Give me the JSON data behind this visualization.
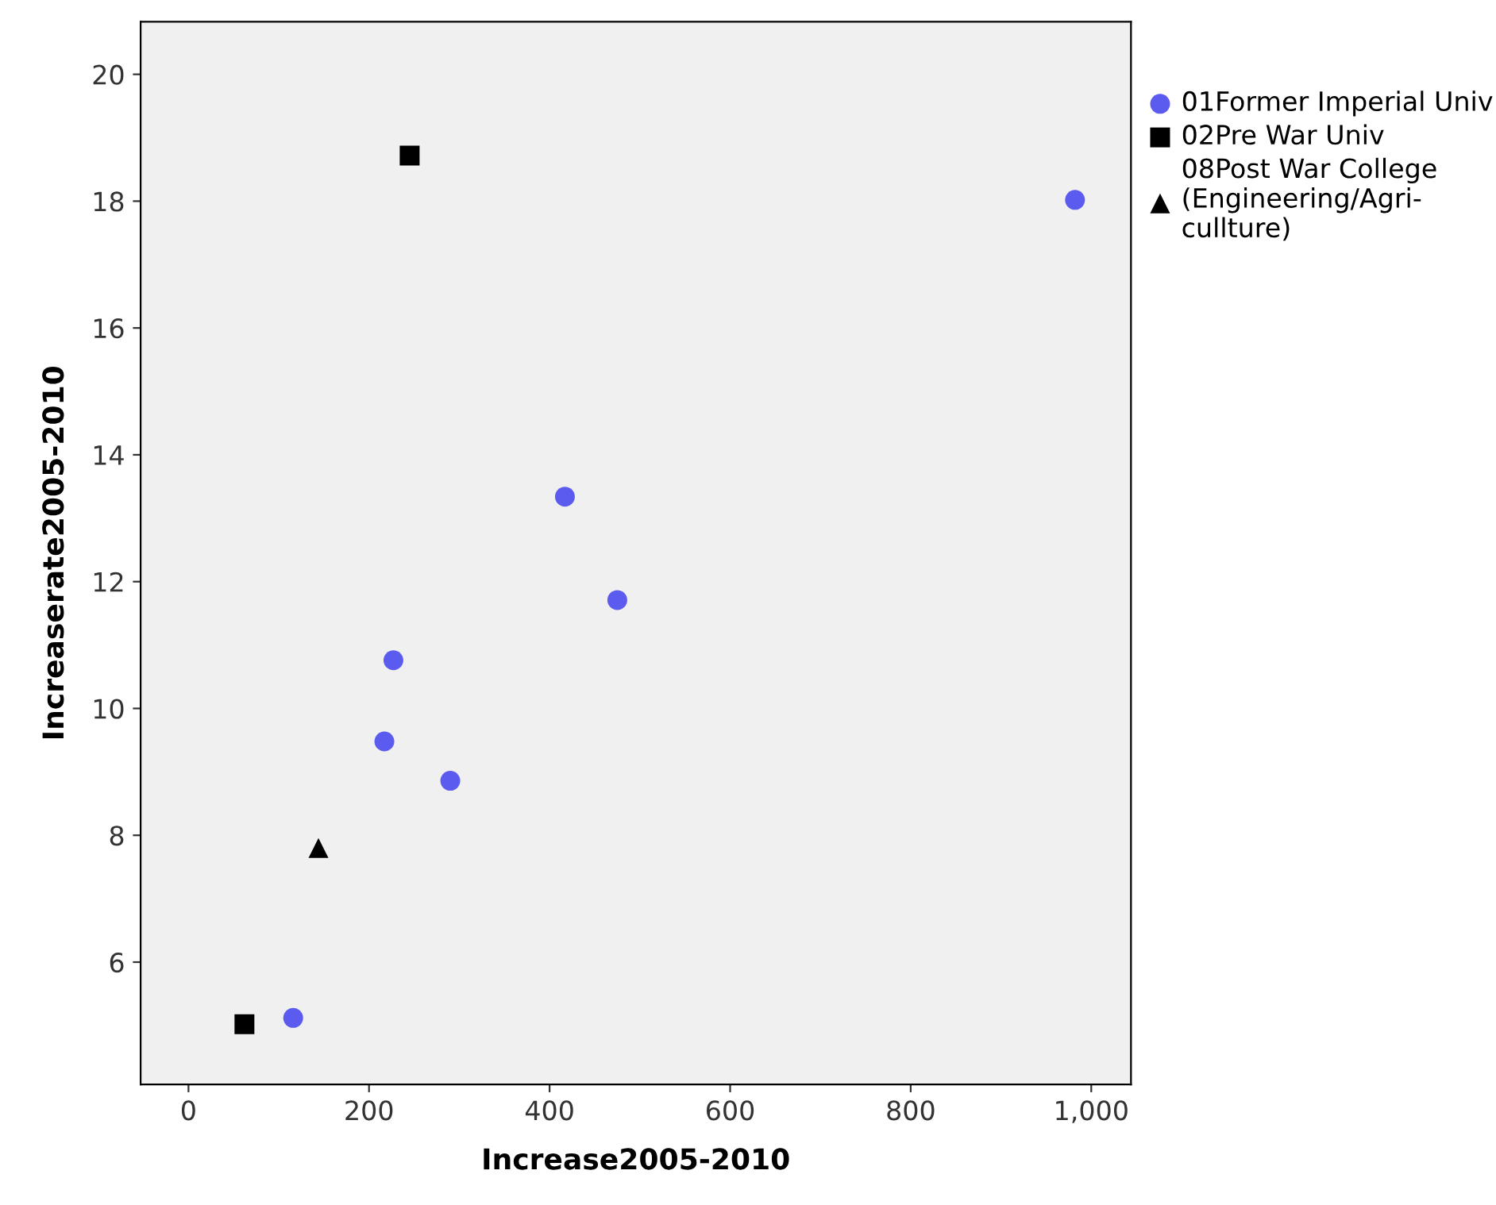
{
  "chart_data": {
    "type": "scatter",
    "xlabel": "Increase2005-2010",
    "ylabel": "Increaserate2005-2010",
    "xlim": [
      -53,
      1044
    ],
    "ylim": [
      4.07,
      20.83
    ],
    "xticks": [
      0,
      200,
      400,
      600,
      800,
      {
        "value": 1000,
        "label": "1,000"
      }
    ],
    "yticks": [
      6,
      8,
      10,
      12,
      14,
      16,
      18,
      20
    ],
    "grid": false,
    "legend": "right",
    "series": [
      {
        "name": "01Former Imperial Univ",
        "color": "#5b5bf0",
        "marker": "circle",
        "x": [
          982,
          417,
          475,
          227,
          217,
          290,
          116
        ],
        "values": [
          18.02,
          13.34,
          11.71,
          10.76,
          9.48,
          8.86,
          5.12
        ]
      },
      {
        "name": "02Pre War Univ",
        "color": "#000000",
        "marker": "square",
        "x": [
          245,
          62
        ],
        "values": [
          18.72,
          5.02
        ]
      },
      {
        "name": "08Post War College (Engineering/Agri-cullture)",
        "color": "#000000",
        "marker": "triangle",
        "x": [
          144
        ],
        "values": [
          7.8
        ]
      }
    ]
  }
}
